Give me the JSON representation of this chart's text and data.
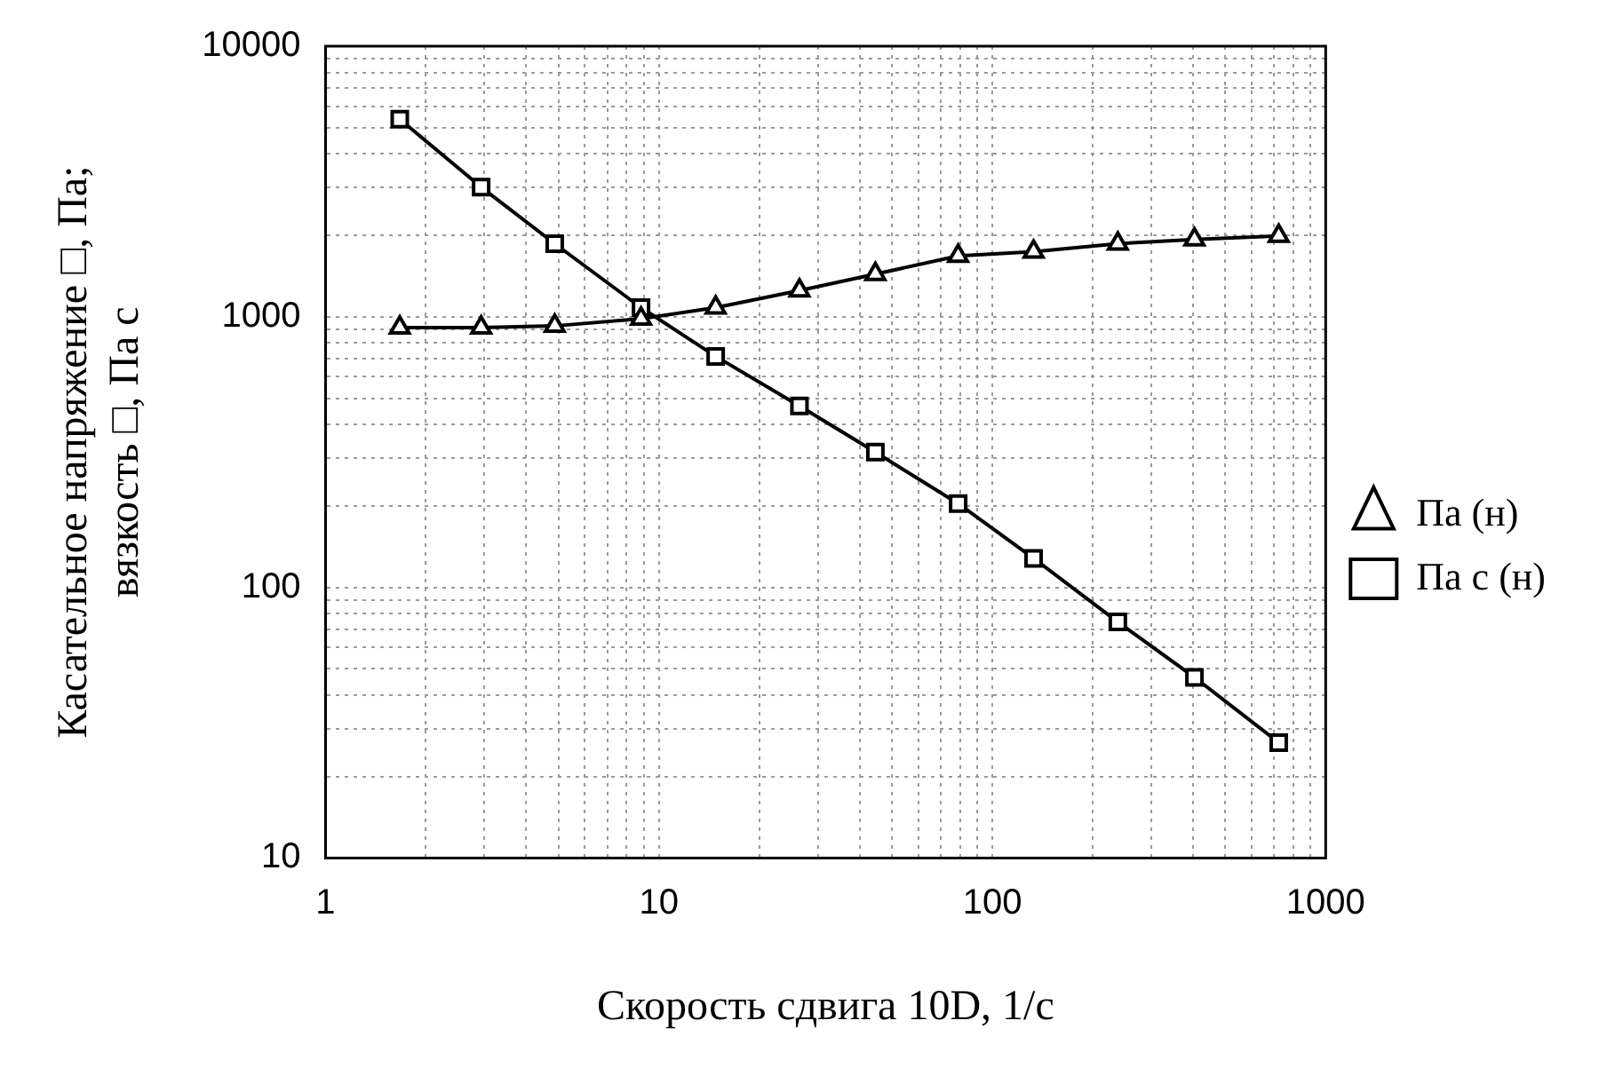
{
  "chart_data": {
    "type": "line",
    "xlabel": "Скорость сдвига 10D, 1/с",
    "ylabel": "Касательное напряжение □, Па;\nвязкость □, Па с",
    "x": [
      1.67,
      2.93,
      4.87,
      8.84,
      14.8,
      26.4,
      44.6,
      79,
      133,
      238,
      404,
      723
    ],
    "series": [
      {
        "name": "Па (н)",
        "color": "#000000",
        "marker": "triangle",
        "values": [
          912,
          912,
          925,
          984,
          1081,
          1250,
          1437,
          1678,
          1740,
          1862,
          1930,
          1991
        ]
      },
      {
        "name": "Па с (н)",
        "color": "#000000",
        "marker": "square",
        "values": [
          5375,
          3013,
          1862,
          1081,
          714,
          468,
          316,
          204,
          128,
          74.5,
          46.5,
          26.7
        ]
      }
    ],
    "log": "xy",
    "xlim": [
      1,
      1000
    ],
    "ylim": [
      10,
      10000
    ],
    "xticks": [
      1,
      {
        "value": 2,
        "label": null
      },
      {
        "value": 3,
        "label": null
      },
      {
        "value": 4,
        "label": null
      },
      {
        "value": 5,
        "label": null
      },
      {
        "value": 6,
        "label": null
      },
      {
        "value": 7,
        "label": null
      },
      {
        "value": 8,
        "label": null
      },
      {
        "value": 9,
        "label": null
      },
      10,
      {
        "value": 20,
        "label": null
      },
      {
        "value": 30,
        "label": null
      },
      {
        "value": 40,
        "label": null
      },
      {
        "value": 50,
        "label": null
      },
      {
        "value": 60,
        "label": null
      },
      {
        "value": 70,
        "label": null
      },
      {
        "value": 80,
        "label": null
      },
      {
        "value": 90,
        "label": null
      },
      100,
      {
        "value": 200,
        "label": null
      },
      {
        "value": 300,
        "label": null
      },
      {
        "value": 400,
        "label": null
      },
      {
        "value": 500,
        "label": null
      },
      {
        "value": 600,
        "label": null
      },
      {
        "value": 700,
        "label": null
      },
      {
        "value": 800,
        "label": null
      },
      {
        "value": 900,
        "label": null
      },
      1000
    ],
    "yticks": [
      10,
      {
        "value": 20,
        "label": null
      },
      {
        "value": 30,
        "label": null
      },
      {
        "value": 40,
        "label": null
      },
      {
        "value": 50,
        "label": null
      },
      {
        "value": 60,
        "label": null
      },
      {
        "value": 70,
        "label": null
      },
      {
        "value": 80,
        "label": null
      },
      {
        "value": 90,
        "label": null
      },
      100,
      {
        "value": 200,
        "label": null
      },
      {
        "value": 300,
        "label": null
      },
      {
        "value": 400,
        "label": null
      },
      {
        "value": 500,
        "label": null
      },
      {
        "value": 600,
        "label": null
      },
      {
        "value": 700,
        "label": null
      },
      {
        "value": 800,
        "label": null
      },
      {
        "value": 900,
        "label": null
      },
      1000,
      {
        "value": 2000,
        "label": null
      },
      {
        "value": 3000,
        "label": null
      },
      {
        "value": 4000,
        "label": null
      },
      {
        "value": 5000,
        "label": null
      },
      {
        "value": 6000,
        "label": null
      },
      {
        "value": 7000,
        "label": null
      },
      {
        "value": 8000,
        "label": null
      },
      {
        "value": 9000,
        "label": null
      },
      10000
    ],
    "grid": true,
    "legend": "right",
    "line_style": "solid"
  }
}
